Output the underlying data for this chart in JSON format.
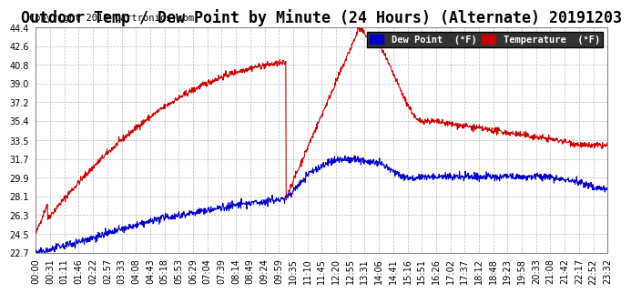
{
  "title": "Outdoor Temp / Dew Point by Minute (24 Hours) (Alternate) 20191203",
  "copyright": "Copyright 2019 Cartronics.com",
  "legend_dew": "Dew Point  (°F)",
  "legend_temp": "Temperature  (°F)",
  "temp_color": "#cc0000",
  "dew_color": "#0000cc",
  "legend_dew_bg": "#0000cc",
  "legend_temp_bg": "#cc0000",
  "ylim": [
    22.7,
    44.4
  ],
  "yticks": [
    22.7,
    24.5,
    26.3,
    28.1,
    29.9,
    31.7,
    33.5,
    35.4,
    37.2,
    39.0,
    40.8,
    42.6,
    44.4
  ],
  "background_color": "#ffffff",
  "plot_bg_color": "#ffffff",
  "grid_color": "#bbbbbb",
  "title_fontsize": 12,
  "copyright_fontsize": 7.5,
  "tick_fontsize": 7,
  "xtick_labels": [
    "00:00",
    "00:31",
    "01:11",
    "01:46",
    "02:22",
    "02:57",
    "03:33",
    "04:08",
    "04:43",
    "05:18",
    "05:53",
    "06:29",
    "07:04",
    "07:39",
    "08:14",
    "08:49",
    "09:24",
    "09:59",
    "10:35",
    "11:10",
    "11:45",
    "12:20",
    "12:55",
    "13:31",
    "14:06",
    "14:41",
    "15:16",
    "15:51",
    "16:26",
    "17:02",
    "17:37",
    "18:12",
    "18:48",
    "19:23",
    "19:58",
    "20:33",
    "21:08",
    "21:42",
    "22:17",
    "22:52",
    "23:32"
  ],
  "num_minutes": 1440
}
